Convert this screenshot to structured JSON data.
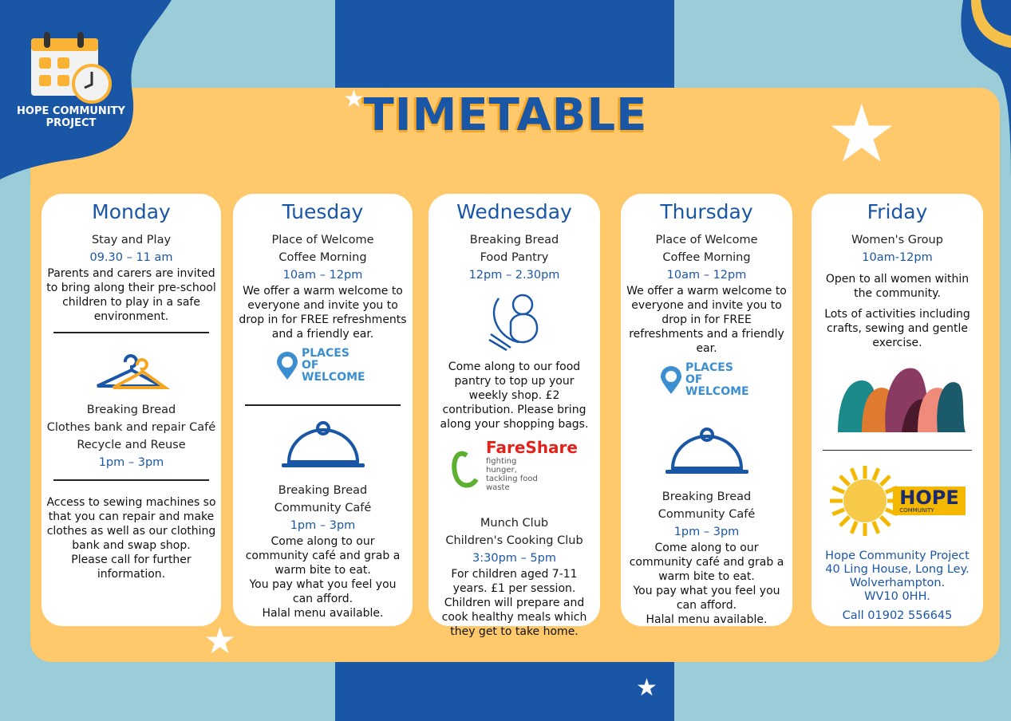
{
  "brand": {
    "name": "HOPE COMMUNITY PROJECT"
  },
  "title": "TIMETABLE",
  "colors": {
    "blue": "#1a56a6",
    "yellow": "#fec86b",
    "sky": "#9acdd8",
    "orange": "#f5a623"
  },
  "days": [
    {
      "day": "Monday",
      "blocks": [
        {
          "k": "t",
          "v": "Stay and Play"
        },
        {
          "k": "tm",
          "v": "09.30 – 11 am"
        },
        {
          "k": "b",
          "v": "Parents and carers are invited to bring along their pre-school children to play in a safe environment."
        },
        {
          "k": "hr"
        },
        {
          "k": "img",
          "icon": "hanger-icon"
        },
        {
          "k": "t",
          "v": "Breaking Bread"
        },
        {
          "k": "t",
          "v": "Clothes bank and repair Café"
        },
        {
          "k": "t",
          "v": "Recycle and Reuse"
        },
        {
          "k": "tm",
          "v": "1pm – 3pm"
        },
        {
          "k": "hr"
        },
        {
          "k": "sp"
        },
        {
          "k": "b",
          "v": "Access to sewing machines so that you can repair and make clothes as well as our clothing bank and swap shop."
        },
        {
          "k": "b",
          "v": "Please call for further information."
        }
      ]
    },
    {
      "day": "Tuesday",
      "blocks": [
        {
          "k": "t",
          "v": "Place of Welcome"
        },
        {
          "k": "t",
          "v": "Coffee Morning"
        },
        {
          "k": "tm",
          "v": "10am – 12pm"
        },
        {
          "k": "b",
          "v": "We offer a warm welcome to everyone and invite you to drop in for FREE refreshments and a friendly ear."
        },
        {
          "k": "img",
          "icon": "places-of-welcome-logo",
          "label": "PLACES OF WELCOME"
        },
        {
          "k": "sp"
        },
        {
          "k": "hr"
        },
        {
          "k": "img",
          "icon": "cloche-icon"
        },
        {
          "k": "t",
          "v": "Breaking Bread"
        },
        {
          "k": "t",
          "v": "Community Café"
        },
        {
          "k": "tm",
          "v": "1pm – 3pm"
        },
        {
          "k": "b",
          "v": "Come along to our community café and grab a warm bite to eat."
        },
        {
          "k": "b",
          "v": "You pay what you feel you can afford."
        },
        {
          "k": "b",
          "v": "Halal menu available."
        }
      ]
    },
    {
      "day": "Wednesday",
      "blocks": [
        {
          "k": "t",
          "v": "Breaking Bread"
        },
        {
          "k": "t",
          "v": "Food Pantry"
        },
        {
          "k": "tm",
          "v": "12pm – 2.30pm"
        },
        {
          "k": "img",
          "icon": "vegetables-icon"
        },
        {
          "k": "b",
          "v": "Come along to our food pantry to top up your weekly shop. £2 contribution. Please bring along your shopping bags."
        },
        {
          "k": "img",
          "icon": "fareshare-logo",
          "label": "FareShare",
          "sub": "fighting hunger, tackling food waste"
        },
        {
          "k": "hr"
        },
        {
          "k": "sp"
        },
        {
          "k": "t",
          "v": "Munch Club"
        },
        {
          "k": "t",
          "v": "Children's Cooking Club"
        },
        {
          "k": "tm",
          "v": "3:30pm – 5pm"
        },
        {
          "k": "b",
          "v": "For children aged 7-11 years. £1 per session. Children will prepare and cook healthy meals which they get to take home."
        }
      ]
    },
    {
      "day": "Thursday",
      "blocks": [
        {
          "k": "sp"
        },
        {
          "k": "t",
          "v": "Place of Welcome"
        },
        {
          "k": "t",
          "v": "Coffee Morning"
        },
        {
          "k": "tm",
          "v": "10am – 12pm"
        },
        {
          "k": "b",
          "v": "We offer a warm welcome to everyone and invite you to drop in for FREE refreshments and a friendly ear."
        },
        {
          "k": "img",
          "icon": "places-of-welcome-logo",
          "label": "PLACES OF WELCOME"
        },
        {
          "k": "hr"
        },
        {
          "k": "img",
          "icon": "cloche-icon"
        },
        {
          "k": "t",
          "v": "Breaking Bread"
        },
        {
          "k": "t",
          "v": "Community Café"
        },
        {
          "k": "tm",
          "v": "1pm – 3pm"
        },
        {
          "k": "sp"
        },
        {
          "k": "b",
          "v": "Come along to our community café and grab a warm bite to eat."
        },
        {
          "k": "b",
          "v": "You pay what you feel you can afford."
        },
        {
          "k": "b",
          "v": "Halal menu available."
        }
      ]
    },
    {
      "day": "Friday",
      "blocks": [
        {
          "k": "t",
          "v": "Women's Group"
        },
        {
          "k": "tm",
          "v": "10am-12pm"
        },
        {
          "k": "sp"
        },
        {
          "k": "b",
          "v": "Open to all women within the community."
        },
        {
          "k": "sp"
        },
        {
          "k": "b",
          "v": "Lots of activities including crafts, sewing and gentle exercise."
        },
        {
          "k": "img",
          "icon": "women-silhouettes-image"
        },
        {
          "k": "hr"
        },
        {
          "k": "img",
          "icon": "hope-community-logo",
          "label": "HOPE",
          "sub": "COMMUNITY"
        },
        {
          "k": "sp"
        },
        {
          "k": "addr",
          "v": "Hope Community Project"
        },
        {
          "k": "addr",
          "v": "40 Ling House, Long Ley."
        },
        {
          "k": "addr",
          "v": "Wolverhampton."
        },
        {
          "k": "addr",
          "v": "WV10 0HH."
        },
        {
          "k": "sp"
        },
        {
          "k": "addr",
          "v": "Call 01902 556645"
        }
      ]
    }
  ]
}
